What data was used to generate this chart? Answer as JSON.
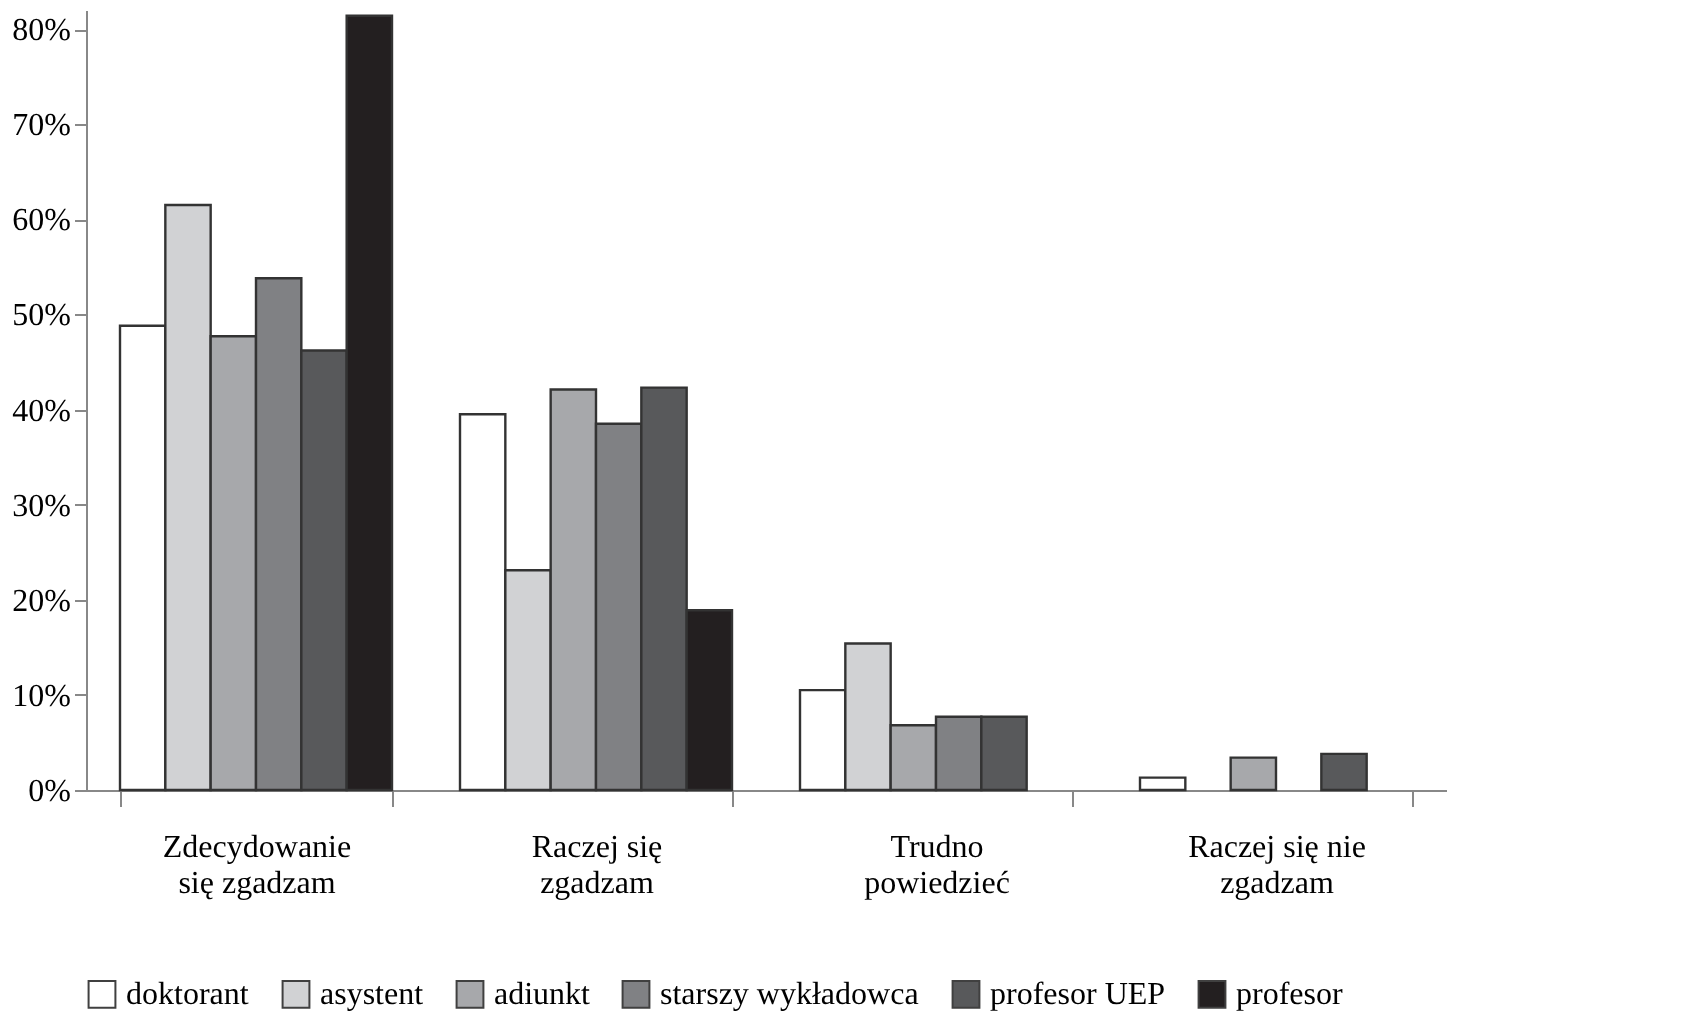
{
  "chart_data": {
    "type": "bar",
    "categories": [
      "Zdecydowanie się zgadzam",
      "Raczej się zgadzam",
      "Trudno powiedzieć",
      "Raczej się nie zgadzam"
    ],
    "series": [
      {
        "name": "doktorant",
        "color": "#ffffff",
        "values": [
          48.8,
          39.5,
          10.5,
          1.3
        ]
      },
      {
        "name": "asystent",
        "color": "#d1d2d4",
        "values": [
          61.5,
          23.1,
          15.4,
          null
        ]
      },
      {
        "name": "adiunkt",
        "color": "#a7a8ab",
        "values": [
          47.7,
          42.1,
          6.8,
          3.4
        ]
      },
      {
        "name": "starszy wykładowca",
        "color": "#808184",
        "values": [
          53.8,
          38.5,
          7.7,
          null
        ]
      },
      {
        "name": "profesor UEP",
        "color": "#58595b",
        "values": [
          46.2,
          42.3,
          7.7,
          3.8
        ]
      },
      {
        "name": "profesor",
        "color": "#231f20",
        "values": [
          81.4,
          18.9,
          null,
          null
        ]
      }
    ],
    "ylim": [
      0,
      82
    ],
    "yticks": [
      {
        "value": 0,
        "label": "0%"
      },
      {
        "value": 10,
        "label": "10%"
      },
      {
        "value": 20,
        "label": "20%"
      },
      {
        "value": 30,
        "label": "30%"
      },
      {
        "value": 40,
        "label": "40%"
      },
      {
        "value": 50,
        "label": "50%"
      },
      {
        "value": 60,
        "label": "60%"
      },
      {
        "value": 70,
        "label": "70%"
      },
      {
        "value": 80,
        "label": "80%"
      }
    ],
    "grid": false,
    "legend": "bottom"
  }
}
